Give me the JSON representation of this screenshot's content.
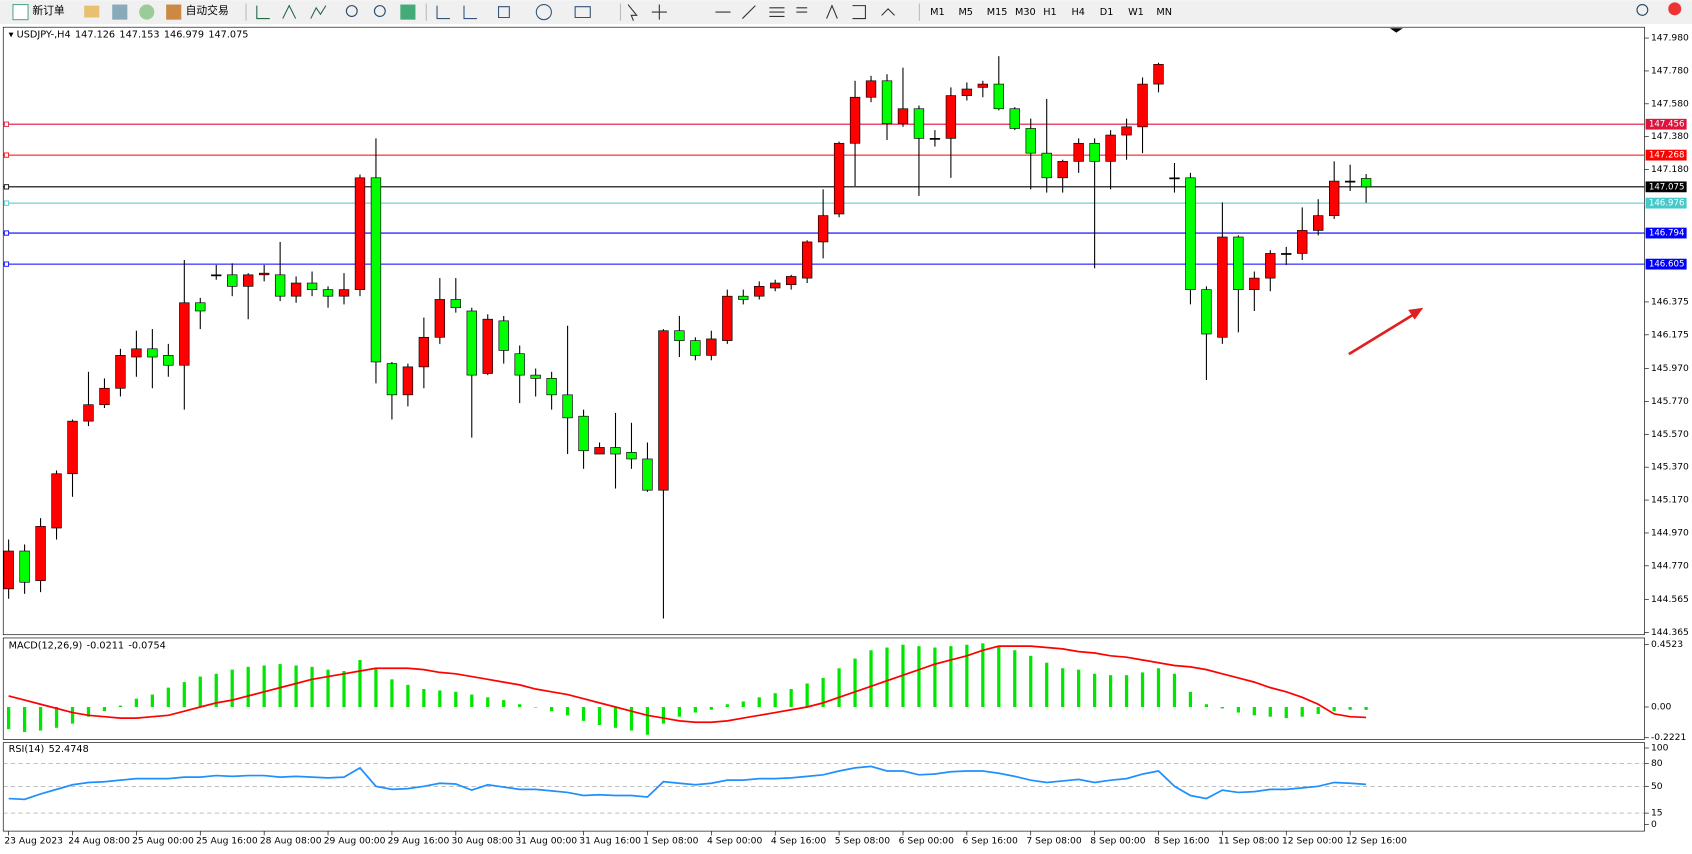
{
  "toolbar": {
    "new_order": "新订单",
    "auto_trading": "自动交易",
    "timeframes": [
      "M1",
      "M5",
      "M15",
      "M30",
      "H1",
      "H4",
      "D1",
      "W1",
      "MN"
    ]
  },
  "chart_data": {
    "type": "candlestick",
    "title": "USDJPY-,H4",
    "up_color": "#ff0000",
    "down_color": "#00ff00",
    "categories": [
      "23 Aug 2023",
      null,
      null,
      null,
      "24 Aug 08:00",
      null,
      null,
      null,
      "25 Aug 00:00",
      null,
      null,
      null,
      "25 Aug 16:00",
      null,
      null,
      null,
      "28 Aug 08:00",
      null,
      null,
      null,
      "29 Aug 00:00",
      null,
      null,
      null,
      "29 Aug 16:00",
      null,
      null,
      null,
      "30 Aug 08:00",
      null,
      null,
      null,
      "31 Aug 00:00",
      null,
      null,
      null,
      "31 Aug 16:00",
      null,
      null,
      null,
      "1 Sep 08:00",
      null,
      null,
      null,
      "4 Sep 00:00",
      null,
      null,
      null,
      "4 Sep 16:00",
      null,
      null,
      null,
      "5 Sep 08:00",
      null,
      null,
      null,
      "6 Sep 00:00",
      null,
      null,
      null,
      "6 Sep 16:00",
      null,
      null,
      null,
      "7 Sep 08:00",
      null,
      null,
      null,
      "8 Sep 00:00",
      null,
      null,
      null,
      "8 Sep 16:00",
      null,
      null,
      null,
      "11 Sep 08:00",
      null,
      null,
      null,
      "12 Sep 00:00",
      null,
      null,
      null,
      "12 Sep 16:00",
      null
    ],
    "open": [
      144.63,
      144.86,
      144.68,
      145.0,
      145.33,
      145.65,
      145.75,
      145.85,
      146.04,
      146.09,
      146.05,
      145.99,
      146.37,
      146.54,
      146.54,
      146.47,
      146.54,
      146.54,
      146.41,
      146.49,
      146.45,
      146.41,
      146.45,
      147.13,
      146.0,
      145.81,
      145.98,
      146.16,
      146.39,
      146.32,
      145.94,
      146.26,
      146.06,
      145.93,
      145.91,
      145.81,
      145.68,
      145.45,
      145.49,
      145.46,
      145.42,
      145.23,
      146.2,
      146.14,
      146.05,
      146.14,
      146.41,
      146.41,
      146.46,
      146.48,
      146.52,
      146.74,
      146.91,
      147.34,
      147.62,
      147.72,
      147.46,
      147.55,
      147.37,
      147.37,
      147.63,
      147.68,
      147.7,
      147.55,
      147.43,
      147.28,
      147.13,
      147.23,
      147.34,
      147.23,
      147.39,
      147.44,
      147.7,
      147.13,
      147.13,
      146.45,
      146.16,
      146.77,
      146.45,
      146.52,
      146.67,
      146.67,
      146.81,
      146.9,
      147.11,
      147.126
    ],
    "high": [
      144.93,
      144.9,
      145.06,
      145.35,
      145.66,
      145.95,
      145.91,
      146.09,
      146.2,
      146.21,
      146.12,
      146.63,
      146.4,
      146.6,
      146.61,
      146.55,
      146.6,
      146.74,
      146.53,
      146.56,
      146.47,
      146.55,
      147.15,
      147.37,
      146.01,
      146.0,
      146.28,
      146.52,
      146.52,
      146.34,
      146.3,
      146.29,
      146.11,
      145.97,
      145.95,
      146.23,
      145.72,
      145.52,
      145.7,
      145.64,
      145.52,
      146.21,
      146.29,
      146.16,
      146.2,
      146.45,
      146.45,
      146.5,
      146.51,
      146.54,
      146.75,
      147.06,
      147.35,
      147.72,
      147.75,
      147.76,
      147.8,
      147.57,
      147.42,
      147.68,
      147.71,
      147.72,
      147.87,
      147.56,
      147.49,
      147.61,
      147.24,
      147.37,
      147.37,
      147.42,
      147.49,
      147.74,
      147.83,
      147.22,
      147.16,
      146.47,
      146.98,
      146.78,
      146.56,
      146.69,
      146.71,
      146.95,
      147.0,
      147.23,
      147.21,
      147.153
    ],
    "low": [
      144.57,
      144.6,
      144.61,
      144.93,
      145.19,
      145.62,
      145.73,
      145.8,
      145.92,
      145.85,
      145.92,
      145.72,
      146.21,
      146.51,
      146.41,
      146.27,
      146.5,
      146.38,
      146.37,
      146.41,
      146.34,
      146.36,
      146.41,
      145.88,
      145.66,
      145.74,
      145.85,
      146.12,
      146.31,
      145.55,
      145.93,
      146.0,
      145.76,
      145.8,
      145.72,
      145.45,
      145.36,
      145.45,
      145.24,
      145.36,
      145.22,
      144.45,
      146.04,
      146.02,
      146.02,
      146.12,
      146.36,
      146.39,
      146.44,
      146.45,
      146.49,
      146.64,
      146.89,
      147.08,
      147.59,
      147.36,
      147.44,
      147.02,
      147.32,
      147.13,
      147.6,
      147.62,
      147.54,
      147.42,
      147.06,
      147.04,
      147.04,
      147.16,
      146.58,
      147.06,
      147.24,
      147.28,
      147.65,
      147.04,
      146.36,
      145.9,
      146.12,
      146.19,
      146.32,
      146.44,
      146.6,
      146.63,
      146.78,
      146.88,
      147.05,
      146.979
    ],
    "close": [
      144.86,
      144.67,
      145.01,
      145.33,
      145.65,
      145.75,
      145.85,
      146.05,
      146.09,
      146.04,
      145.99,
      146.37,
      146.32,
      146.54,
      146.47,
      146.54,
      146.55,
      146.41,
      146.49,
      146.45,
      146.41,
      146.45,
      147.13,
      146.01,
      145.81,
      145.98,
      146.16,
      146.39,
      146.34,
      145.93,
      146.27,
      146.08,
      145.93,
      145.91,
      145.81,
      145.67,
      145.47,
      145.49,
      145.45,
      145.42,
      145.23,
      146.2,
      146.14,
      146.05,
      146.15,
      146.41,
      146.39,
      146.47,
      146.49,
      146.53,
      146.74,
      146.9,
      147.34,
      147.62,
      147.72,
      147.46,
      147.55,
      147.37,
      147.37,
      147.63,
      147.67,
      147.7,
      147.55,
      147.43,
      147.28,
      147.13,
      147.23,
      147.34,
      147.23,
      147.39,
      147.44,
      147.7,
      147.82,
      147.13,
      146.45,
      146.18,
      146.77,
      146.45,
      146.52,
      146.67,
      146.67,
      146.81,
      146.9,
      147.11,
      147.11,
      147.075
    ],
    "ylim": [
      144.351,
      148.046
    ],
    "yticks": [
      {
        "value": 147.98,
        "label": "147.980"
      },
      {
        "value": 147.78,
        "label": "147.780"
      },
      {
        "value": 147.58,
        "label": "147.580"
      },
      {
        "value": 147.38,
        "label": "147.380"
      },
      {
        "value": 147.18,
        "label": "147.180"
      },
      146.375,
      146.175,
      {
        "value": 145.97,
        "label": "145.970"
      },
      {
        "value": 145.77,
        "label": "145.770"
      },
      {
        "value": 145.57,
        "label": "145.570"
      },
      {
        "value": 145.37,
        "label": "145.370"
      },
      {
        "value": 145.17,
        "label": "145.170"
      },
      {
        "value": 144.97,
        "label": "144.970"
      },
      {
        "value": 144.77,
        "label": "144.770"
      },
      144.565,
      144.365
    ],
    "levels": [
      {
        "value": 147.456,
        "color": "#dc143c"
      },
      {
        "value": 147.268,
        "color": "#ff0000"
      },
      {
        "value": 146.976,
        "color": "#48c9c9"
      },
      {
        "value": 146.794,
        "color": "#0000ff"
      },
      {
        "value": 146.605,
        "color": "#0000ff"
      }
    ],
    "macd": {
      "label": "MACD(12,26,9)",
      "color": "#00e600",
      "signal_color": "#ff0000",
      "values": [
        -0.16,
        -0.18,
        -0.17,
        -0.15,
        -0.12,
        -0.07,
        -0.03,
        0.01,
        0.06,
        0.09,
        0.14,
        0.18,
        0.22,
        0.24,
        0.27,
        0.29,
        0.3,
        0.31,
        0.3,
        0.29,
        0.27,
        0.26,
        0.34,
        0.28,
        0.2,
        0.16,
        0.13,
        0.12,
        0.11,
        0.09,
        0.07,
        0.05,
        0.02,
        0.0,
        -0.03,
        -0.06,
        -0.1,
        -0.13,
        -0.15,
        -0.17,
        -0.2,
        -0.12,
        -0.07,
        -0.04,
        -0.02,
        0.02,
        0.04,
        0.07,
        0.1,
        0.13,
        0.17,
        0.21,
        0.28,
        0.35,
        0.41,
        0.43,
        0.45,
        0.44,
        0.43,
        0.44,
        0.45,
        0.46,
        0.44,
        0.41,
        0.37,
        0.32,
        0.28,
        0.27,
        0.24,
        0.23,
        0.23,
        0.25,
        0.28,
        0.24,
        0.11,
        0.02,
        -0.01,
        -0.04,
        -0.06,
        -0.07,
        -0.08,
        -0.07,
        -0.05,
        -0.03,
        -0.02,
        -0.0211
      ],
      "signal": [
        0.08,
        0.05,
        0.02,
        -0.01,
        -0.04,
        -0.06,
        -0.07,
        -0.08,
        -0.08,
        -0.07,
        -0.06,
        -0.03,
        0.0,
        0.03,
        0.05,
        0.08,
        0.11,
        0.14,
        0.17,
        0.2,
        0.22,
        0.24,
        0.26,
        0.28,
        0.28,
        0.28,
        0.27,
        0.25,
        0.24,
        0.22,
        0.2,
        0.18,
        0.16,
        0.13,
        0.11,
        0.09,
        0.06,
        0.03,
        0.0,
        -0.03,
        -0.06,
        -0.08,
        -0.1,
        -0.11,
        -0.11,
        -0.1,
        -0.08,
        -0.06,
        -0.04,
        -0.02,
        0.0,
        0.03,
        0.07,
        0.11,
        0.15,
        0.19,
        0.23,
        0.27,
        0.31,
        0.34,
        0.37,
        0.41,
        0.44,
        0.44,
        0.44,
        0.43,
        0.42,
        0.4,
        0.39,
        0.37,
        0.36,
        0.34,
        0.32,
        0.3,
        0.29,
        0.27,
        0.24,
        0.21,
        0.18,
        0.14,
        0.11,
        0.07,
        0.02,
        -0.05,
        -0.07,
        -0.0754
      ],
      "ylim": [
        -0.234,
        0.499
      ],
      "yticks": [
        0.4523,
        {
          "value": 0,
          "label": "0.00"
        },
        -0.2221
      ]
    },
    "rsi": {
      "label": "RSI(14)",
      "color": "#1e90ff",
      "values": [
        34,
        33,
        40,
        46,
        52,
        55,
        56,
        58,
        60,
        60,
        60,
        62,
        62,
        64,
        63,
        64,
        64,
        62,
        63,
        62,
        61,
        62,
        74,
        50,
        46,
        47,
        50,
        54,
        53,
        45,
        52,
        49,
        46,
        46,
        44,
        42,
        38,
        39,
        38,
        38,
        36,
        56,
        54,
        52,
        54,
        58,
        58,
        60,
        60,
        61,
        63,
        65,
        70,
        74,
        76,
        70,
        70,
        65,
        66,
        69,
        70,
        70,
        67,
        63,
        58,
        55,
        57,
        59,
        55,
        58,
        60,
        66,
        70,
        50,
        38,
        34,
        45,
        42,
        43,
        46,
        46,
        48,
        50,
        55,
        54,
        52.4748
      ],
      "ylim": [
        -8.5,
        107
      ],
      "yticks": [
        100,
        80,
        50,
        15,
        0
      ]
    }
  }
}
